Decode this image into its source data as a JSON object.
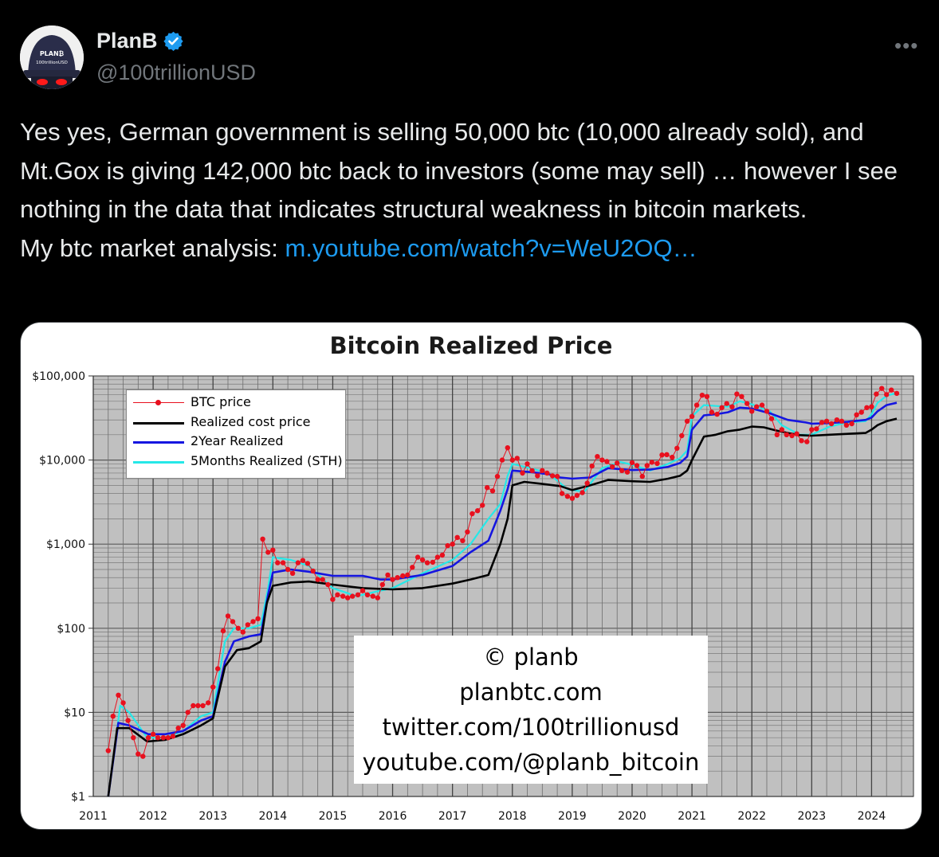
{
  "author": {
    "name": "PlanB",
    "handle": "@100trillionUSD",
    "avatar_text_top": "PLAN₿",
    "avatar_text_bottom": "100trillionUSD"
  },
  "icons": [
    "verified-badge-icon",
    "more-options-icon"
  ],
  "colors": {
    "link": "#1d9bf0",
    "verified": "#1d9bf0",
    "secondary_text": "#71767b"
  },
  "tweet": {
    "text": "Yes yes, German government is selling 50,000 btc (10,000 already sold), and Mt.Gox is giving 142,000 btc back to investors (some may sell) … however I see nothing in the data that indicates structural weakness in bitcoin markets.",
    "analysis_prefix": "My btc market analysis: ",
    "link": "m.youtube.com/watch?v=WeU2OQ…"
  },
  "more_label": "•••",
  "chart_data": {
    "type": "line",
    "title": "Bitcoin Realized Price",
    "y_scale": "log",
    "ylim": [
      1,
      100000
    ],
    "xlim": [
      2011,
      2024.7
    ],
    "y_ticks": [
      "$1",
      "$10",
      "$100",
      "$1,000",
      "$10,000",
      "$100,000"
    ],
    "x_ticks": [
      "2011",
      "2012",
      "2013",
      "2014",
      "2015",
      "2016",
      "2017",
      "2018",
      "2019",
      "2020",
      "2021",
      "2022",
      "2023",
      "2024"
    ],
    "legend_position": "top-left",
    "grid": true,
    "series": [
      {
        "name": "BTC price",
        "color": "#e8101e",
        "marker": "dot",
        "x": [
          2011.25,
          2011.33,
          2011.42,
          2011.5,
          2011.58,
          2011.67,
          2011.75,
          2011.83,
          2011.92,
          2012.0,
          2012.08,
          2012.17,
          2012.25,
          2012.33,
          2012.42,
          2012.5,
          2012.58,
          2012.67,
          2012.75,
          2012.83,
          2012.92,
          2013.0,
          2013.08,
          2013.17,
          2013.25,
          2013.33,
          2013.42,
          2013.5,
          2013.58,
          2013.67,
          2013.75,
          2013.83,
          2013.92,
          2014.0,
          2014.08,
          2014.17,
          2014.25,
          2014.33,
          2014.42,
          2014.5,
          2014.58,
          2014.67,
          2014.75,
          2014.83,
          2014.92,
          2015.0,
          2015.08,
          2015.17,
          2015.25,
          2015.33,
          2015.42,
          2015.5,
          2015.58,
          2015.67,
          2015.75,
          2015.83,
          2015.92,
          2016.0,
          2016.08,
          2016.17,
          2016.25,
          2016.33,
          2016.42,
          2016.5,
          2016.58,
          2016.67,
          2016.75,
          2016.83,
          2016.92,
          2017.0,
          2017.08,
          2017.17,
          2017.25,
          2017.33,
          2017.42,
          2017.5,
          2017.58,
          2017.67,
          2017.75,
          2017.83,
          2017.92,
          2018.0,
          2018.08,
          2018.17,
          2018.25,
          2018.33,
          2018.42,
          2018.5,
          2018.58,
          2018.67,
          2018.75,
          2018.83,
          2018.92,
          2019.0,
          2019.08,
          2019.17,
          2019.25,
          2019.33,
          2019.42,
          2019.5,
          2019.58,
          2019.67,
          2019.75,
          2019.83,
          2019.92,
          2020.0,
          2020.08,
          2020.17,
          2020.25,
          2020.33,
          2020.42,
          2020.5,
          2020.58,
          2020.67,
          2020.75,
          2020.83,
          2020.92,
          2021.0,
          2021.08,
          2021.17,
          2021.25,
          2021.33,
          2021.42,
          2021.5,
          2021.58,
          2021.67,
          2021.75,
          2021.83,
          2021.92,
          2022.0,
          2022.08,
          2022.17,
          2022.25,
          2022.33,
          2022.42,
          2022.5,
          2022.58,
          2022.67,
          2022.75,
          2022.83,
          2022.92,
          2023.0,
          2023.08,
          2023.17,
          2023.25,
          2023.33,
          2023.42,
          2023.5,
          2023.58,
          2023.67,
          2023.75,
          2023.83,
          2023.92,
          2024.0,
          2024.08,
          2024.17,
          2024.25,
          2024.33,
          2024.42
        ],
        "y": [
          3.5,
          9,
          16,
          13,
          8,
          5,
          3.2,
          3,
          5,
          5.5,
          5,
          5,
          5,
          5.2,
          6.5,
          7,
          10,
          12,
          12,
          12,
          13,
          20,
          33,
          93,
          140,
          120,
          100,
          90,
          110,
          120,
          130,
          1150,
          800,
          850,
          600,
          600,
          500,
          450,
          600,
          640,
          590,
          480,
          380,
          380,
          330,
          220,
          250,
          240,
          230,
          240,
          250,
          280,
          250,
          240,
          230,
          330,
          430,
          380,
          400,
          420,
          430,
          530,
          700,
          650,
          600,
          610,
          700,
          740,
          960,
          1000,
          1200,
          1100,
          1400,
          2300,
          2500,
          2900,
          4700,
          4300,
          6400,
          10000,
          14000,
          10000,
          10500,
          7000,
          9000,
          7500,
          6500,
          7500,
          7000,
          6500,
          6400,
          4000,
          3700,
          3500,
          3800,
          4100,
          5300,
          8500,
          11000,
          10000,
          9600,
          8300,
          9200,
          7500,
          7200,
          9300,
          8600,
          6400,
          8600,
          9400,
          9100,
          11500,
          11600,
          10800,
          13800,
          19500,
          29000,
          33000,
          45000,
          59000,
          57000,
          37000,
          35000,
          42000,
          47000,
          43000,
          61000,
          57000,
          47000,
          38000,
          43000,
          45000,
          38000,
          31000,
          20000,
          23000,
          20000,
          19500,
          20500,
          17000,
          16500,
          23000,
          23500,
          28000,
          29000,
          27000,
          30000,
          29000,
          26000,
          27000,
          34500,
          37000,
          42000,
          43000,
          61000,
          71000,
          60000,
          68000,
          62000
        ]
      },
      {
        "name": "Realized cost price",
        "color": "#000000",
        "marker": "none",
        "x": [
          2011.25,
          2011.4,
          2011.6,
          2011.9,
          2012.2,
          2012.5,
          2012.8,
          2013.0,
          2013.2,
          2013.4,
          2013.6,
          2013.8,
          2013.9,
          2014.0,
          2014.3,
          2014.6,
          2015.0,
          2015.5,
          2016.0,
          2016.5,
          2017.0,
          2017.3,
          2017.6,
          2017.8,
          2017.92,
          2018.0,
          2018.2,
          2018.5,
          2018.8,
          2019.0,
          2019.3,
          2019.6,
          2020.0,
          2020.3,
          2020.6,
          2020.8,
          2020.92,
          2021.0,
          2021.2,
          2021.4,
          2021.6,
          2021.8,
          2022.0,
          2022.2,
          2022.4,
          2022.6,
          2022.8,
          2023.0,
          2023.3,
          2023.6,
          2023.9,
          2024.0,
          2024.1,
          2024.25,
          2024.42
        ],
        "y": [
          1,
          6.5,
          6.5,
          4.5,
          4.7,
          5.5,
          7,
          8.5,
          35,
          55,
          58,
          70,
          200,
          320,
          350,
          360,
          330,
          300,
          290,
          300,
          340,
          380,
          430,
          1000,
          2000,
          5000,
          5500,
          5200,
          4900,
          4400,
          5000,
          5800,
          5600,
          5500,
          6000,
          6500,
          7500,
          10000,
          19000,
          20000,
          22000,
          23000,
          25000,
          24500,
          22500,
          21000,
          19800,
          19500,
          20000,
          20500,
          21000,
          23000,
          26000,
          29000,
          31000
        ]
      },
      {
        "name": "2Year Realized",
        "color": "#1515e0",
        "marker": "none",
        "x": [
          2011.25,
          2011.42,
          2011.6,
          2011.92,
          2012.2,
          2012.5,
          2012.8,
          2013.0,
          2013.2,
          2013.35,
          2013.6,
          2013.8,
          2013.92,
          2014.0,
          2014.3,
          2014.6,
          2015.0,
          2015.5,
          2015.8,
          2016.0,
          2016.5,
          2017.0,
          2017.3,
          2017.6,
          2017.8,
          2017.92,
          2018.0,
          2018.3,
          2018.6,
          2018.8,
          2019.0,
          2019.3,
          2019.6,
          2020.0,
          2020.3,
          2020.6,
          2020.8,
          2020.92,
          2021.0,
          2021.2,
          2021.4,
          2021.6,
          2021.8,
          2022.0,
          2022.3,
          2022.6,
          2022.9,
          2023.0,
          2023.3,
          2023.6,
          2023.9,
          2024.0,
          2024.1,
          2024.25,
          2024.42
        ],
        "y": [
          1,
          7.5,
          7,
          5.5,
          5.5,
          6,
          8,
          9,
          40,
          70,
          80,
          85,
          250,
          460,
          500,
          470,
          420,
          420,
          380,
          380,
          430,
          550,
          800,
          1100,
          2500,
          4500,
          7500,
          7200,
          6800,
          6200,
          6000,
          6200,
          8000,
          7600,
          7700,
          8300,
          9200,
          11000,
          23000,
          34000,
          35000,
          37000,
          42000,
          41000,
          36000,
          30000,
          28000,
          27000,
          27500,
          28500,
          30000,
          32000,
          38000,
          45000,
          48000
        ]
      },
      {
        "name": "5Months Realized (STH)",
        "color": "#25e8e8",
        "marker": "none",
        "x": [
          2011.25,
          2011.45,
          2011.6,
          2011.9,
          2012.2,
          2012.5,
          2012.8,
          2013.0,
          2013.2,
          2013.35,
          2013.6,
          2013.8,
          2013.92,
          2014.0,
          2014.3,
          2014.6,
          2015.0,
          2015.4,
          2015.7,
          2016.0,
          2016.5,
          2017.0,
          2017.3,
          2017.6,
          2017.8,
          2017.92,
          2018.0,
          2018.3,
          2018.6,
          2018.92,
          2019.2,
          2019.5,
          2019.8,
          2020.0,
          2020.3,
          2020.6,
          2020.8,
          2020.92,
          2021.0,
          2021.2,
          2021.4,
          2021.6,
          2021.8,
          2022.0,
          2022.3,
          2022.5,
          2022.8,
          2023.0,
          2023.3,
          2023.6,
          2023.9,
          2024.0,
          2024.1,
          2024.25,
          2024.42
        ],
        "y": [
          1,
          12,
          10,
          5,
          5,
          6,
          9,
          10,
          70,
          100,
          100,
          110,
          300,
          700,
          650,
          550,
          300,
          240,
          270,
          300,
          450,
          650,
          1000,
          2000,
          3000,
          6500,
          9000,
          8000,
          7000,
          4500,
          4200,
          8000,
          9500,
          8800,
          7500,
          9000,
          10500,
          13000,
          33000,
          45000,
          44000,
          43000,
          50000,
          46000,
          38000,
          26000,
          20000,
          20000,
          25000,
          28000,
          29000,
          35000,
          48000,
          58000,
          63000
        ]
      }
    ],
    "watermark": [
      "© planb",
      "planbtc.com",
      "twitter.com/100trillionusd",
      "youtube.com/@planb_bitcoin"
    ]
  }
}
